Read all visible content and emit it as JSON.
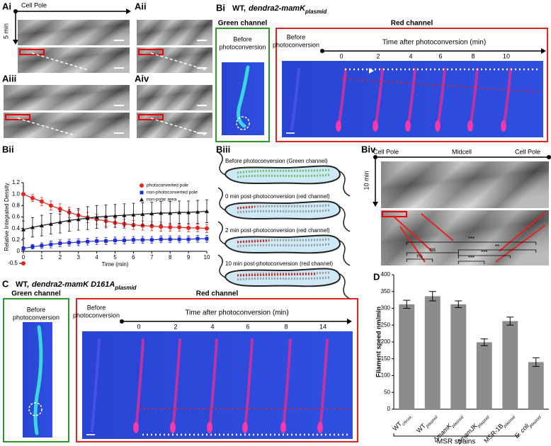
{
  "panel_A": {
    "labels": [
      "Ai",
      "Aii",
      "Aiii",
      "Aiv"
    ],
    "axis_label_x": "Cell Pole",
    "axis_label_y": "5 min"
  },
  "panel_Bi": {
    "label": "Bi",
    "title": "WT,",
    "title_gene": "dendra2-mamK",
    "title_sub": "plasmid",
    "green_channel": "Green channel",
    "green_caption": [
      "Before",
      "photoconversion"
    ],
    "red_channel": "Red channel",
    "red_caption": [
      "Before",
      "photoconversion"
    ],
    "time_axis_title": "Time after photoconversion (min)",
    "time_points": [
      0,
      2,
      4,
      6,
      8,
      10
    ]
  },
  "panel_Bii": {
    "label": "Bii"
  },
  "panel_Biii": {
    "label": "Biii",
    "captions": [
      "Before photoconversion (Green channel)",
      "0 min post-photoconversion (red channel)",
      "2 min post-photoconversion (red channel)",
      "10 min post-photoconversion (red channel)"
    ]
  },
  "panel_Biv": {
    "label": "Biv",
    "top_labels": [
      "Cell Pole",
      "Midcell",
      "Cell Pole"
    ],
    "axis_label_y": "10 min"
  },
  "panel_C": {
    "label": "C",
    "title": "WT,",
    "title_gene": "dendra2-mamK D161A",
    "title_sub": "plasmid",
    "green_channel": "Green channel",
    "green_caption": [
      "Before",
      "photoconversion"
    ],
    "red_channel": "Red channel",
    "red_caption": [
      "Before",
      "photoconversion"
    ],
    "time_axis_title": "Time after photoconversion (min)",
    "time_points": [
      0,
      2,
      4,
      6,
      8,
      14
    ]
  },
  "panel_D": {
    "label": "D",
    "group_label": "MSR strains"
  },
  "chart_data": [
    {
      "type": "line",
      "ylabel": "Relative Integrated Density",
      "xlabel": "Time (min)",
      "x": [
        0,
        0.5,
        1,
        1.5,
        2,
        2.5,
        3,
        3.5,
        4,
        4.5,
        5,
        5.5,
        6,
        6.5,
        7,
        7.5,
        8,
        8.5,
        9,
        9.5,
        10
      ],
      "xlim": [
        0,
        10
      ],
      "xticks": [
        0,
        1,
        2,
        3,
        4,
        5,
        6,
        7,
        8,
        9,
        10
      ],
      "ylim": [
        0,
        1.2
      ],
      "yticks": [
        0,
        0.2,
        0.4,
        0.6,
        0.8,
        {
          "value": 1,
          "label": "1.0"
        },
        1.2
      ],
      "axis_break_tick": -0.5,
      "legend": "top-right",
      "series": [
        {
          "name": "photoconverted pole",
          "color": "#e8231f",
          "marker": "circle",
          "values": [
            1.0,
            0.93,
            0.87,
            0.8,
            0.74,
            0.68,
            0.63,
            0.59,
            0.56,
            0.53,
            0.5,
            0.48,
            0.46,
            0.45,
            0.44,
            0.43,
            0.42,
            0.42,
            0.41,
            0.41,
            0.4
          ],
          "errors": [
            0.02,
            0.06,
            0.07,
            0.08,
            0.09,
            0.09,
            0.09,
            0.09,
            0.09,
            0.09,
            0.08,
            0.08,
            0.08,
            0.08,
            0.08,
            0.08,
            0.07,
            0.07,
            0.07,
            0.07,
            0.07
          ]
        },
        {
          "name": "non-photoconverted pole",
          "color": "#1d2bd8",
          "marker": "square",
          "values": [
            0.05,
            0.08,
            0.1,
            0.12,
            0.14,
            0.15,
            0.16,
            0.17,
            0.18,
            0.18,
            0.19,
            0.19,
            0.2,
            0.2,
            0.2,
            0.21,
            0.21,
            0.21,
            0.21,
            0.22,
            0.22
          ],
          "errors": [
            0.03,
            0.04,
            0.05,
            0.06,
            0.06,
            0.06,
            0.06,
            0.06,
            0.06,
            0.06,
            0.06,
            0.06,
            0.06,
            0.06,
            0.06,
            0.06,
            0.06,
            0.06,
            0.06,
            0.06,
            0.06
          ]
        },
        {
          "name": "non-polar area",
          "color": "#111111",
          "marker": "triangle",
          "values": [
            0.38,
            0.42,
            0.45,
            0.48,
            0.51,
            0.54,
            0.56,
            0.58,
            0.6,
            0.61,
            0.62,
            0.63,
            0.64,
            0.65,
            0.66,
            0.67,
            0.67,
            0.68,
            0.68,
            0.69,
            0.7
          ],
          "errors": [
            0.15,
            0.17,
            0.18,
            0.18,
            0.19,
            0.19,
            0.19,
            0.2,
            0.2,
            0.2,
            0.2,
            0.2,
            0.2,
            0.2,
            0.2,
            0.2,
            0.2,
            0.2,
            0.2,
            0.2,
            0.2
          ]
        }
      ]
    },
    {
      "type": "bar",
      "ylabel": "Filament speed nm/min",
      "categories": [
        "WT",
        "WT",
        "ΔmamK",
        "ΔmamJK",
        "MSR-1B",
        "E. coli"
      ],
      "category_subscripts": [
        "chrom",
        "plasmid",
        "plasmid",
        "plasmid",
        "plasmid",
        "plasmid"
      ],
      "values": [
        312,
        336,
        312,
        199,
        262,
        140
      ],
      "errors": [
        12,
        14,
        10,
        10,
        12,
        13
      ],
      "color": "#8c8c8c",
      "ylim": [
        0,
        400
      ],
      "yticks": [
        0,
        50,
        100,
        150,
        200,
        250,
        300,
        350,
        400
      ],
      "significance": [
        "ns",
        "ns",
        "***",
        "***",
        "**",
        "***"
      ]
    }
  ]
}
